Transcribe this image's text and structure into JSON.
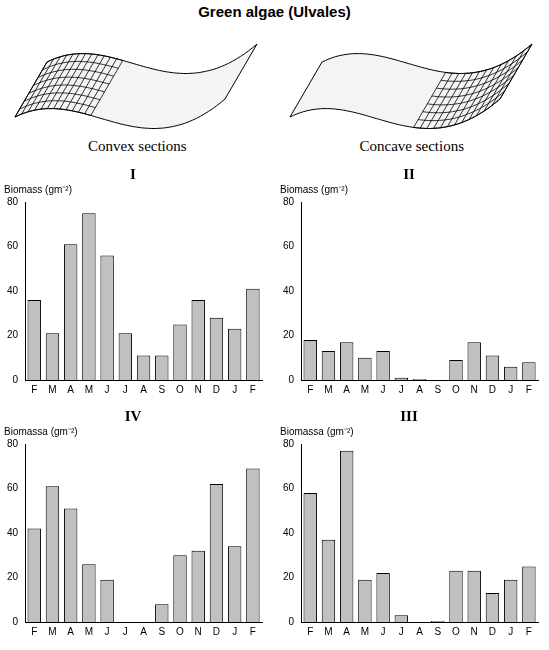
{
  "title": "Green algae (Ulvales)",
  "captions": [
    "Convex sections",
    "Concave sections"
  ],
  "chart_data": [
    {
      "type": "bar",
      "title": "I",
      "ylabel": "Biomass (gm⁻²)",
      "categories": [
        "F",
        "M",
        "A",
        "M",
        "J",
        "J",
        "A",
        "S",
        "O",
        "N",
        "D",
        "J",
        "F"
      ],
      "values": [
        36,
        21,
        61,
        75,
        56,
        21,
        11,
        11,
        25,
        36,
        28,
        23,
        41
      ],
      "color": "#c0c0c0",
      "ylim": [
        0,
        80
      ],
      "yticks": [
        0,
        20,
        40,
        60,
        80
      ],
      "grid": false
    },
    {
      "type": "bar",
      "title": "II",
      "ylabel": "Biomass (gm⁻²)",
      "categories": [
        "F",
        "M",
        "A",
        "M",
        "J",
        "J",
        "A",
        "S",
        "O",
        "N",
        "D",
        "J",
        "F"
      ],
      "values": [
        18,
        13,
        17,
        10,
        13,
        1,
        0.5,
        0,
        9,
        17,
        11,
        6,
        8
      ],
      "color": "#c0c0c0",
      "ylim": [
        0,
        80
      ],
      "yticks": [
        0,
        20,
        40,
        60,
        80
      ],
      "grid": false
    },
    {
      "type": "bar",
      "title": "IV",
      "ylabel": "Biomassa (gm⁻²)",
      "categories": [
        "F",
        "M",
        "A",
        "M",
        "J",
        "J",
        "A",
        "S",
        "O",
        "N",
        "D",
        "J",
        "F"
      ],
      "values": [
        42,
        61,
        51,
        26,
        19,
        0,
        0,
        8,
        30,
        32,
        62,
        34,
        69
      ],
      "color": "#c0c0c0",
      "ylim": [
        0,
        80
      ],
      "yticks": [
        0,
        20,
        40,
        60,
        80
      ],
      "grid": false
    },
    {
      "type": "bar",
      "title": "III",
      "ylabel": "Biomassa (gm⁻²)",
      "categories": [
        "F",
        "M",
        "A",
        "M",
        "J",
        "J",
        "A",
        "S",
        "O",
        "N",
        "D",
        "J",
        "F"
      ],
      "values": [
        58,
        37,
        77,
        19,
        22,
        3,
        0,
        0.5,
        23,
        23,
        13,
        19,
        25
      ],
      "color": "#c0c0c0",
      "ylim": [
        0,
        80
      ],
      "yticks": [
        0,
        20,
        40,
        60,
        80
      ],
      "grid": false
    }
  ]
}
